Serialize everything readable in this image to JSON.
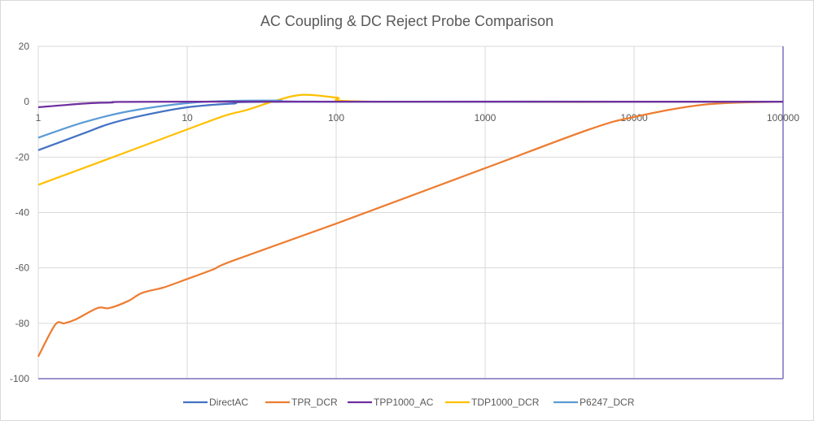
{
  "chart_data": {
    "type": "line",
    "title": "AC Coupling & DC Reject Probe Comparison",
    "xscale": "log",
    "xlim": [
      1,
      100000
    ],
    "ylim": [
      -100,
      20
    ],
    "x_ticks": [
      "1",
      "10",
      "100",
      "1000",
      "10000",
      "100000"
    ],
    "y_ticks": [
      "20",
      "0",
      "-20",
      "-40",
      "-60",
      "-80",
      "-100"
    ],
    "grid": true,
    "legend": "bottom",
    "series": [
      {
        "name": "DirectAC",
        "color": "#4472c4",
        "points": [
          [
            1,
            -17.5
          ],
          [
            2,
            -11.5
          ],
          [
            3,
            -8
          ],
          [
            5,
            -5
          ],
          [
            10,
            -2
          ],
          [
            20,
            -0.7
          ],
          [
            50,
            0
          ],
          [
            100000,
            0
          ]
        ]
      },
      {
        "name": "TPR_DCR",
        "color": "#ed7d31",
        "points": [
          [
            1,
            -92
          ],
          [
            1.3,
            -80.5
          ],
          [
            1.5,
            -80
          ],
          [
            1.8,
            -78.5
          ],
          [
            2.5,
            -74.5
          ],
          [
            3,
            -74.5
          ],
          [
            4,
            -72
          ],
          [
            5,
            -69
          ],
          [
            7,
            -67
          ],
          [
            10,
            -64
          ],
          [
            15,
            -60.5
          ],
          [
            20,
            -57.5
          ],
          [
            100,
            -44
          ],
          [
            1000,
            -24
          ],
          [
            5000,
            -10
          ],
          [
            10000,
            -5.5
          ],
          [
            30000,
            -1
          ],
          [
            100000,
            0
          ]
        ]
      },
      {
        "name": "TPP1000_AC",
        "color": "#7030a0",
        "points": [
          [
            1,
            -2
          ],
          [
            2,
            -0.7
          ],
          [
            3,
            -0.3
          ],
          [
            10,
            0
          ],
          [
            100000,
            0
          ]
        ]
      },
      {
        "name": "TDP1000_DCR",
        "color": "#ffc000",
        "points": [
          [
            1,
            -30
          ],
          [
            3,
            -20.5
          ],
          [
            10,
            -10
          ],
          [
            18,
            -5
          ],
          [
            25,
            -3
          ],
          [
            40,
            0.5
          ],
          [
            60,
            2.5
          ],
          [
            100,
            1.5
          ],
          [
            200,
            0
          ],
          [
            100000,
            0
          ]
        ]
      },
      {
        "name": "P6247_DCR",
        "color": "#5b9bd5",
        "points": [
          [
            1,
            -13
          ],
          [
            2,
            -7.5
          ],
          [
            4,
            -3.5
          ],
          [
            10,
            -0.5
          ],
          [
            20,
            0.3
          ],
          [
            40,
            0.4
          ],
          [
            100,
            0
          ],
          [
            100000,
            0
          ]
        ]
      }
    ]
  }
}
